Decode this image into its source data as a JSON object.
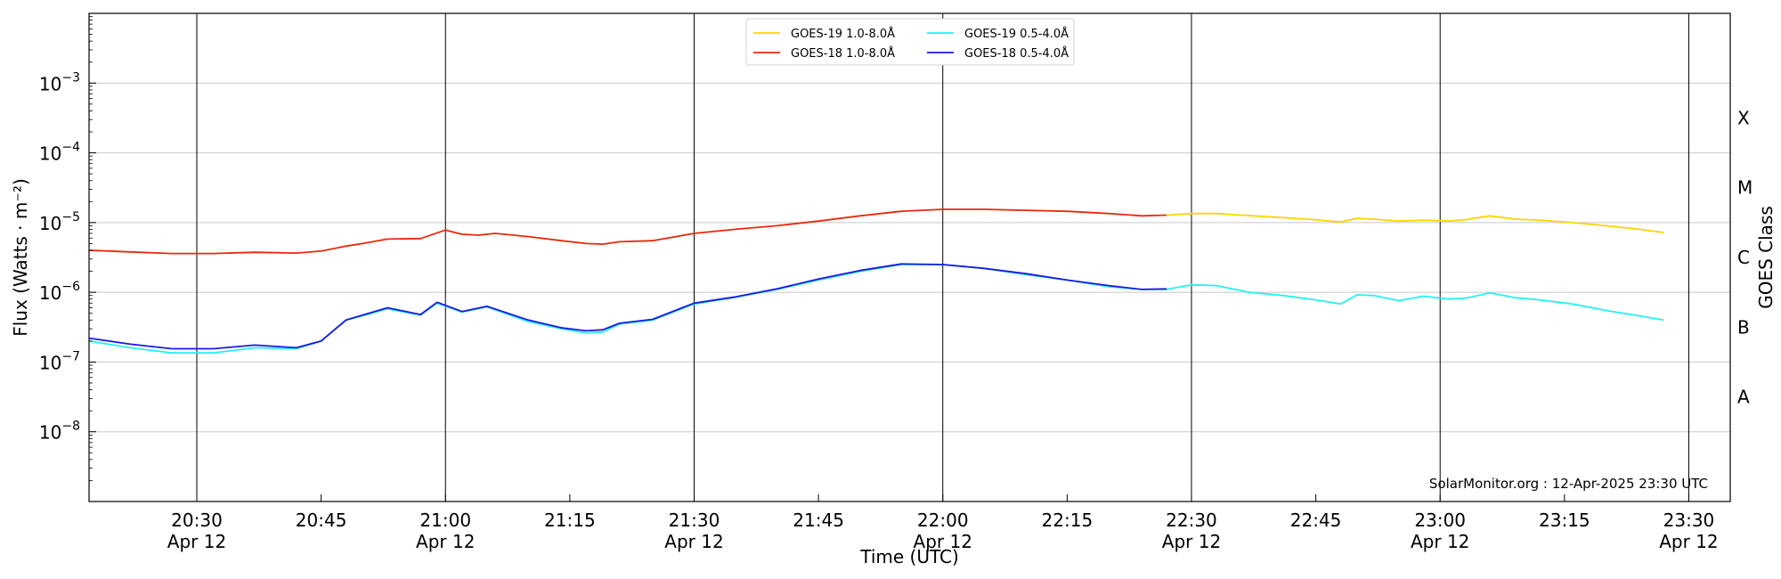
{
  "chart_data": {
    "type": "line",
    "xlabel": "Time (UTC)",
    "ylabel": "Flux (Watts · m⁻²)",
    "right_ylabel": "GOES Class",
    "credit": "SolarMonitor.org : 12-Apr-2025 23:30 UTC",
    "y_scale": "log",
    "ylim": [
      1e-09,
      0.01
    ],
    "xlim": [
      "20:17",
      "23:35"
    ],
    "grid": "horizontal",
    "legend_position": "top-center",
    "x_ticks": [
      {
        "t": "20:30",
        "label": "20:30",
        "date": "Apr 12"
      },
      {
        "t": "20:45",
        "label": "20:45",
        "date": ""
      },
      {
        "t": "21:00",
        "label": "21:00",
        "date": "Apr 12"
      },
      {
        "t": "21:15",
        "label": "21:15",
        "date": ""
      },
      {
        "t": "21:30",
        "label": "21:30",
        "date": "Apr 12"
      },
      {
        "t": "21:45",
        "label": "21:45",
        "date": ""
      },
      {
        "t": "22:00",
        "label": "22:00",
        "date": "Apr 12"
      },
      {
        "t": "22:15",
        "label": "22:15",
        "date": ""
      },
      {
        "t": "22:30",
        "label": "22:30",
        "date": "Apr 12"
      },
      {
        "t": "22:45",
        "label": "22:45",
        "date": ""
      },
      {
        "t": "23:00",
        "label": "23:00",
        "date": "Apr 12"
      },
      {
        "t": "23:15",
        "label": "23:15",
        "date": ""
      },
      {
        "t": "23:30",
        "label": "23:30",
        "date": "Apr 12"
      }
    ],
    "y_ticks": [
      {
        "exp": -8,
        "label": "10"
      },
      {
        "exp": -7,
        "label": "10"
      },
      {
        "exp": -6,
        "label": "10"
      },
      {
        "exp": -5,
        "label": "10"
      },
      {
        "exp": -4,
        "label": "10"
      },
      {
        "exp": -3,
        "label": "10"
      }
    ],
    "goes_classes": [
      {
        "label": "A",
        "exp": -7.5
      },
      {
        "label": "B",
        "exp": -6.5
      },
      {
        "label": "C",
        "exp": -5.5
      },
      {
        "label": "M",
        "exp": -4.5
      },
      {
        "label": "X",
        "exp": -3.5
      }
    ],
    "series": [
      {
        "name": "GOES-19 1.0-8.0Å",
        "color": "#ffd400",
        "points": [
          [
            "22:27",
            1.28e-05
          ],
          [
            "22:30",
            1.35e-05
          ],
          [
            "22:33",
            1.35e-05
          ],
          [
            "22:36",
            1.28e-05
          ],
          [
            "22:40",
            1.2e-05
          ],
          [
            "22:44",
            1.12e-05
          ],
          [
            "22:48",
            1.02e-05
          ],
          [
            "22:50",
            1.15e-05
          ],
          [
            "22:52",
            1.12e-05
          ],
          [
            "22:55",
            1.05e-05
          ],
          [
            "22:58",
            1.08e-05
          ],
          [
            "23:01",
            1.05e-05
          ],
          [
            "23:03",
            1.1e-05
          ],
          [
            "23:06",
            1.25e-05
          ],
          [
            "23:09",
            1.12e-05
          ],
          [
            "23:12",
            1.08e-05
          ],
          [
            "23:16",
            1e-05
          ],
          [
            "23:20",
            9e-06
          ],
          [
            "23:24",
            8e-06
          ],
          [
            "23:27",
            7.2e-06
          ]
        ]
      },
      {
        "name": "GOES-18 1.0-8.0Å",
        "color": "#e8290b",
        "points": [
          [
            "20:17",
            4e-06
          ],
          [
            "20:22",
            3.8e-06
          ],
          [
            "20:27",
            3.6e-06
          ],
          [
            "20:32",
            3.6e-06
          ],
          [
            "20:37",
            3.75e-06
          ],
          [
            "20:42",
            3.65e-06
          ],
          [
            "20:45",
            3.9e-06
          ],
          [
            "20:48",
            4.6e-06
          ],
          [
            "20:50",
            5e-06
          ],
          [
            "20:53",
            5.8e-06
          ],
          [
            "20:57",
            5.9e-06
          ],
          [
            "21:00",
            7.8e-06
          ],
          [
            "21:02",
            6.8e-06
          ],
          [
            "21:04",
            6.6e-06
          ],
          [
            "21:06",
            7e-06
          ],
          [
            "21:10",
            6.3e-06
          ],
          [
            "21:14",
            5.5e-06
          ],
          [
            "21:17",
            5e-06
          ],
          [
            "21:19",
            4.9e-06
          ],
          [
            "21:21",
            5.3e-06
          ],
          [
            "21:25",
            5.5e-06
          ],
          [
            "21:30",
            7e-06
          ],
          [
            "21:35",
            8e-06
          ],
          [
            "21:40",
            9e-06
          ],
          [
            "21:45",
            1.05e-05
          ],
          [
            "21:50",
            1.25e-05
          ],
          [
            "21:55",
            1.45e-05
          ],
          [
            "22:00",
            1.55e-05
          ],
          [
            "22:05",
            1.55e-05
          ],
          [
            "22:10",
            1.5e-05
          ],
          [
            "22:15",
            1.45e-05
          ],
          [
            "22:20",
            1.35e-05
          ],
          [
            "22:24",
            1.25e-05
          ],
          [
            "22:27",
            1.28e-05
          ]
        ]
      },
      {
        "name": "GOES-19 0.5-4.0Å",
        "color": "#22f2f2",
        "points": [
          [
            "20:17",
            2e-07
          ],
          [
            "20:22",
            1.6e-07
          ],
          [
            "20:27",
            1.35e-07
          ],
          [
            "20:32",
            1.35e-07
          ],
          [
            "20:37",
            1.6e-07
          ],
          [
            "20:42",
            1.55e-07
          ],
          [
            "20:45",
            2e-07
          ],
          [
            "20:48",
            4e-07
          ],
          [
            "20:50",
            4.6e-07
          ],
          [
            "20:53",
            5.8e-07
          ],
          [
            "20:57",
            4.7e-07
          ],
          [
            "20:59",
            7e-07
          ],
          [
            "21:02",
            5.2e-07
          ],
          [
            "21:05",
            6.2e-07
          ],
          [
            "21:10",
            3.8e-07
          ],
          [
            "21:14",
            3e-07
          ],
          [
            "21:17",
            2.6e-07
          ],
          [
            "21:19",
            2.7e-07
          ],
          [
            "21:21",
            3.5e-07
          ],
          [
            "21:25",
            4e-07
          ],
          [
            "21:30",
            6.8e-07
          ],
          [
            "21:35",
            8.5e-07
          ],
          [
            "21:40",
            1.1e-06
          ],
          [
            "21:45",
            1.5e-06
          ],
          [
            "21:50",
            2e-06
          ],
          [
            "21:55",
            2.5e-06
          ],
          [
            "22:00",
            2.5e-06
          ],
          [
            "22:05",
            2.2e-06
          ],
          [
            "22:10",
            1.8e-06
          ],
          [
            "22:15",
            1.5e-06
          ],
          [
            "22:20",
            1.2e-06
          ],
          [
            "22:24",
            1.1e-06
          ],
          [
            "22:27",
            1.1e-06
          ],
          [
            "22:30",
            1.28e-06
          ],
          [
            "22:33",
            1.25e-06
          ],
          [
            "22:37",
            1e-06
          ],
          [
            "22:41",
            9e-07
          ],
          [
            "22:45",
            7.8e-07
          ],
          [
            "22:48",
            6.8e-07
          ],
          [
            "22:50",
            9.2e-07
          ],
          [
            "22:52",
            9e-07
          ],
          [
            "22:55",
            7.6e-07
          ],
          [
            "22:58",
            8.8e-07
          ],
          [
            "23:01",
            8e-07
          ],
          [
            "23:03",
            8.2e-07
          ],
          [
            "23:06",
            9.8e-07
          ],
          [
            "23:09",
            8.4e-07
          ],
          [
            "23:12",
            7.8e-07
          ],
          [
            "23:16",
            6.8e-07
          ],
          [
            "23:20",
            5.5e-07
          ],
          [
            "23:24",
            4.6e-07
          ],
          [
            "23:27",
            4e-07
          ]
        ]
      },
      {
        "name": "GOES-18 0.5-4.0Å",
        "color": "#1a1ae0",
        "points": [
          [
            "20:17",
            2.2e-07
          ],
          [
            "20:22",
            1.8e-07
          ],
          [
            "20:27",
            1.55e-07
          ],
          [
            "20:32",
            1.55e-07
          ],
          [
            "20:37",
            1.75e-07
          ],
          [
            "20:42",
            1.6e-07
          ],
          [
            "20:45",
            2e-07
          ],
          [
            "20:48",
            4e-07
          ],
          [
            "20:50",
            4.7e-07
          ],
          [
            "20:53",
            6e-07
          ],
          [
            "20:57",
            4.8e-07
          ],
          [
            "20:59",
            7.2e-07
          ],
          [
            "21:02",
            5.3e-07
          ],
          [
            "21:05",
            6.3e-07
          ],
          [
            "21:10",
            4e-07
          ],
          [
            "21:14",
            3.1e-07
          ],
          [
            "21:17",
            2.8e-07
          ],
          [
            "21:19",
            2.9e-07
          ],
          [
            "21:21",
            3.6e-07
          ],
          [
            "21:25",
            4.1e-07
          ],
          [
            "21:30",
            7e-07
          ],
          [
            "21:35",
            8.6e-07
          ],
          [
            "21:40",
            1.12e-06
          ],
          [
            "21:45",
            1.55e-06
          ],
          [
            "21:50",
            2.05e-06
          ],
          [
            "21:55",
            2.55e-06
          ],
          [
            "22:00",
            2.5e-06
          ],
          [
            "22:05",
            2.2e-06
          ],
          [
            "22:10",
            1.85e-06
          ],
          [
            "22:15",
            1.5e-06
          ],
          [
            "22:20",
            1.25e-06
          ],
          [
            "22:24",
            1.1e-06
          ],
          [
            "22:27",
            1.12e-06
          ]
        ]
      }
    ]
  }
}
